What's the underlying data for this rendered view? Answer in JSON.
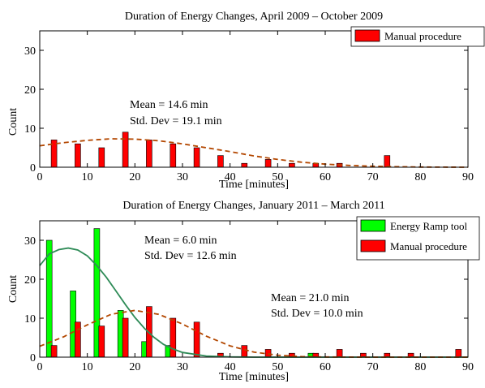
{
  "chart_data": [
    {
      "type": "bar",
      "title": "Duration of Energy Changes, April 2009 – October 2009",
      "xlabel": "Time [minutes]",
      "ylabel": "Count",
      "xlim": [
        0,
        90
      ],
      "ylim": [
        0,
        35
      ],
      "xticks": [
        0,
        10,
        20,
        30,
        40,
        50,
        60,
        70,
        80,
        90
      ],
      "yticks": [
        0,
        10,
        20,
        30
      ],
      "legend_position": "top-right",
      "series": [
        {
          "name": "Manual procedure",
          "color": "#ff0000",
          "x": [
            3,
            8,
            13,
            18,
            23,
            28,
            33,
            38,
            43,
            48,
            53,
            58,
            63,
            68,
            73,
            78,
            83,
            88
          ],
          "values": [
            7,
            6,
            5,
            9,
            7,
            6,
            5,
            3,
            1,
            2,
            1,
            1,
            1,
            0,
            3,
            0,
            0,
            0
          ]
        }
      ],
      "fits": [
        {
          "series": "Manual procedure",
          "color": "#b34700",
          "style": "dashed",
          "x": [
            0,
            5,
            10,
            15,
            20,
            25,
            30,
            35,
            40,
            45,
            50,
            55,
            60,
            65,
            70,
            75,
            80,
            85,
            90
          ],
          "y": [
            5.5,
            6.3,
            6.9,
            7.3,
            7.2,
            6.8,
            6.0,
            5.0,
            4.0,
            2.9,
            2.0,
            1.3,
            0.8,
            0.45,
            0.25,
            0.12,
            0.05,
            0.02,
            0.01
          ]
        }
      ],
      "annotations": [
        "Mean = 14.6 min",
        "Std. Dev = 19.1 min"
      ]
    },
    {
      "type": "bar",
      "title": "Duration of Energy Changes, January 2011 – March 2011",
      "xlabel": "Time [minutes]",
      "ylabel": "Count",
      "xlim": [
        0,
        90
      ],
      "ylim": [
        0,
        35
      ],
      "xticks": [
        0,
        10,
        20,
        30,
        40,
        50,
        60,
        70,
        80,
        90
      ],
      "yticks": [
        0,
        10,
        20,
        30
      ],
      "legend_position": "top-right",
      "series": [
        {
          "name": "Energy Ramp tool",
          "color": "#00ff00",
          "x": [
            2,
            7,
            12,
            17,
            22,
            27,
            32,
            37,
            42,
            47,
            52,
            57,
            62,
            67,
            72,
            77,
            82,
            87
          ],
          "values": [
            30,
            17,
            33,
            12,
            4,
            3,
            0,
            0,
            0,
            0,
            0,
            1,
            0,
            0,
            0,
            0,
            0,
            0
          ]
        },
        {
          "name": "Manual procedure",
          "color": "#ff0000",
          "x": [
            3,
            8,
            13,
            18,
            23,
            28,
            33,
            38,
            43,
            48,
            53,
            58,
            63,
            68,
            73,
            78,
            83,
            88
          ],
          "values": [
            3,
            9,
            8,
            10,
            13,
            10,
            9,
            1,
            3,
            2,
            1,
            1,
            2,
            1,
            1,
            1,
            0,
            2
          ]
        }
      ],
      "fits": [
        {
          "series": "Energy Ramp tool",
          "color": "#2e8b57",
          "style": "solid",
          "x": [
            0,
            2,
            4,
            6,
            8,
            10,
            12,
            14,
            16,
            18,
            20,
            22,
            24,
            26,
            28,
            30,
            35,
            40,
            45,
            50,
            60,
            70,
            80,
            90
          ],
          "y": [
            23.5,
            26.5,
            27.6,
            28.0,
            27.5,
            26.0,
            23.5,
            20.5,
            17.0,
            13.5,
            10.2,
            7.4,
            5.1,
            3.3,
            2.1,
            1.2,
            0.3,
            0.06,
            0.01,
            0,
            0,
            0,
            0,
            0
          ]
        },
        {
          "series": "Manual procedure",
          "color": "#b34700",
          "style": "dashed",
          "x": [
            0,
            5,
            10,
            15,
            20,
            25,
            30,
            35,
            40,
            45,
            50,
            55,
            60,
            70,
            80,
            90
          ],
          "y": [
            2.8,
            5.2,
            8.3,
            11.0,
            12.0,
            11.0,
            8.5,
            5.4,
            2.9,
            1.3,
            0.5,
            0.15,
            0.04,
            0,
            0,
            0
          ]
        }
      ],
      "annotations": [
        "Mean = 6.0 min",
        "Std. Dev = 12.6 min",
        "Mean = 21.0 min",
        "Std. Dev = 10.0 min"
      ]
    }
  ]
}
